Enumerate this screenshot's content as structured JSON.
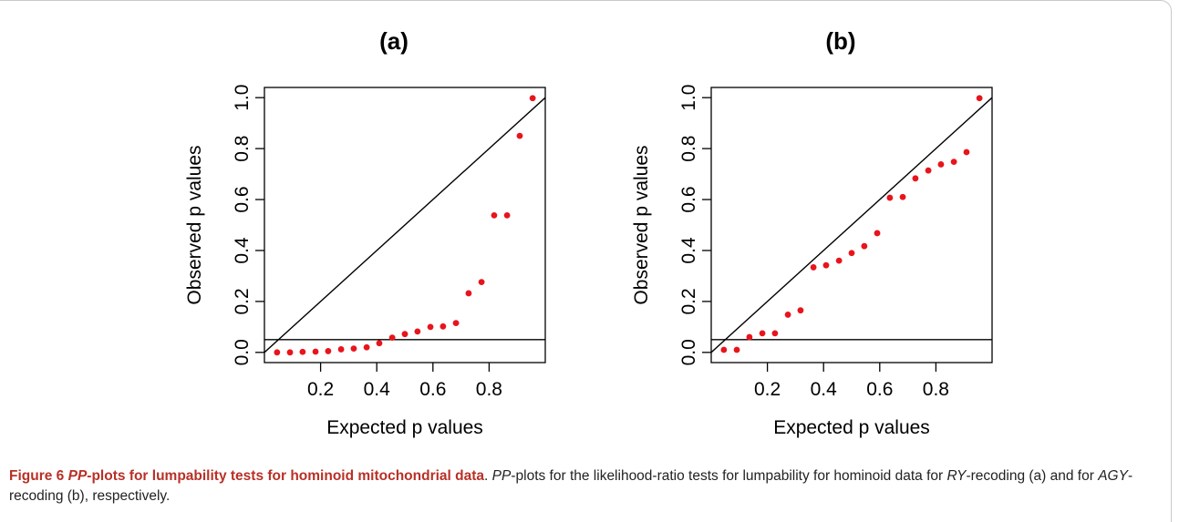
{
  "chart_data": [
    {
      "type": "scatter",
      "panel_label": "(a)",
      "xlabel": "Expected p values",
      "ylabel": "Observed p values",
      "xlim": [
        0.0,
        1.0
      ],
      "ylim": [
        -0.04,
        1.04
      ],
      "xticks": [
        0.2,
        0.4,
        0.6,
        0.8
      ],
      "xtick_labels": [
        "0.2",
        "0.4",
        "0.6",
        "0.8"
      ],
      "yticks": [
        0.0,
        0.2,
        0.4,
        0.6,
        0.8,
        1.0
      ],
      "ytick_labels": [
        "0.0",
        "0.2",
        "0.4",
        "0.6",
        "0.8",
        "1.0"
      ],
      "reference_lines": [
        {
          "kind": "identity",
          "from": [
            0.0,
            0.0
          ],
          "to": [
            1.0,
            1.0
          ]
        },
        {
          "kind": "horizontal",
          "y": 0.05
        }
      ],
      "point_color": "#e8141c",
      "points": {
        "x": [
          0.045,
          0.091,
          0.136,
          0.182,
          0.227,
          0.273,
          0.318,
          0.364,
          0.409,
          0.455,
          0.5,
          0.545,
          0.591,
          0.636,
          0.682,
          0.727,
          0.773,
          0.818,
          0.864,
          0.909,
          0.955
        ],
        "y": [
          0.0,
          0.0,
          0.002,
          0.003,
          0.005,
          0.012,
          0.015,
          0.02,
          0.036,
          0.058,
          0.072,
          0.082,
          0.1,
          0.102,
          0.115,
          0.232,
          0.276,
          0.538,
          0.538,
          0.85,
          0.998
        ]
      }
    },
    {
      "type": "scatter",
      "panel_label": "(b)",
      "xlabel": "Expected p values",
      "ylabel": "Observed p values",
      "xlim": [
        0.0,
        1.0
      ],
      "ylim": [
        -0.04,
        1.04
      ],
      "xticks": [
        0.2,
        0.4,
        0.6,
        0.8
      ],
      "xtick_labels": [
        "0.2",
        "0.4",
        "0.6",
        "0.8"
      ],
      "yticks": [
        0.0,
        0.2,
        0.4,
        0.6,
        0.8,
        1.0
      ],
      "ytick_labels": [
        "0.0",
        "0.2",
        "0.4",
        "0.6",
        "0.8",
        "1.0"
      ],
      "reference_lines": [
        {
          "kind": "identity",
          "from": [
            0.0,
            0.0
          ],
          "to": [
            1.0,
            1.0
          ]
        },
        {
          "kind": "horizontal",
          "y": 0.05
        }
      ],
      "point_color": "#e8141c",
      "points": {
        "x": [
          0.045,
          0.091,
          0.136,
          0.182,
          0.227,
          0.273,
          0.318,
          0.364,
          0.409,
          0.455,
          0.5,
          0.545,
          0.591,
          0.636,
          0.682,
          0.727,
          0.773,
          0.818,
          0.864,
          0.909,
          0.955
        ],
        "y": [
          0.01,
          0.01,
          0.06,
          0.075,
          0.075,
          0.148,
          0.165,
          0.334,
          0.342,
          0.36,
          0.39,
          0.417,
          0.468,
          0.607,
          0.61,
          0.683,
          0.714,
          0.738,
          0.748,
          0.786,
          0.998
        ]
      }
    }
  ],
  "caption": {
    "lead": "Figure 6 ",
    "lead_pp": "PP",
    "lead_rest": "-plots for lumpability tests for hominoid mitochondrial data",
    "dot": ". ",
    "pp": "PP",
    "part1": "-plots for the likelihood-ratio tests for lumpability for hominoid data for ",
    "ry": "RY",
    "part2": "-recoding (a) and for ",
    "agy": "AGY",
    "part3": "-recoding (b), respectively."
  }
}
